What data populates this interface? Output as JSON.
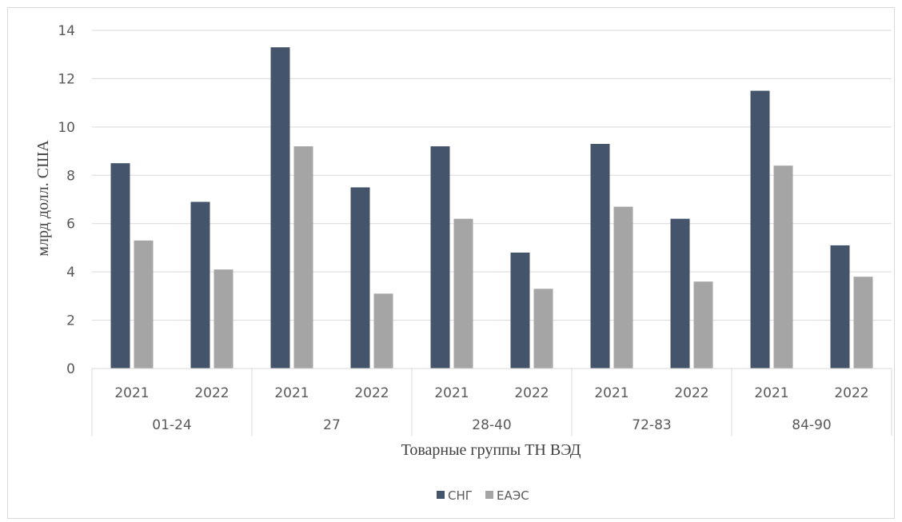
{
  "chart_data": {
    "type": "bar",
    "title": "",
    "xlabel": "Товарные группы ТН ВЭД",
    "ylabel": "млрд долл. США",
    "ylim": [
      0,
      14
    ],
    "yticks": [
      "0",
      "2",
      "4",
      "6",
      "8",
      "10",
      "12",
      "14"
    ],
    "grid": true,
    "legend_position": "bottom",
    "groups": [
      "01-24",
      "27",
      "28-40",
      "72-83",
      "84-90"
    ],
    "years": [
      "2021",
      "2022"
    ],
    "categories": [
      "01-24 / 2021",
      "01-24 / 2022",
      "27 / 2021",
      "27 / 2022",
      "28-40 / 2021",
      "28-40 / 2022",
      "72-83 / 2021",
      "72-83 / 2022",
      "84-90 / 2021",
      "84-90 / 2022"
    ],
    "series": [
      {
        "name": "СНГ",
        "color": "#44546a",
        "values": [
          8.5,
          6.9,
          13.3,
          7.5,
          9.2,
          4.8,
          9.3,
          6.2,
          11.5,
          5.1
        ]
      },
      {
        "name": "ЕАЭС",
        "color": "#a5a5a5",
        "values": [
          5.3,
          4.1,
          9.2,
          3.1,
          6.2,
          3.3,
          6.7,
          3.6,
          8.4,
          3.8
        ]
      }
    ]
  }
}
